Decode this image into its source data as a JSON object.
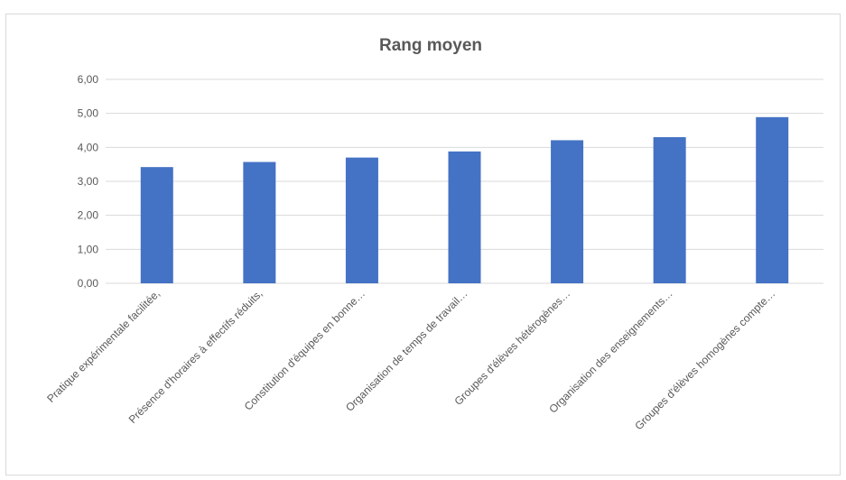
{
  "chart_data": {
    "type": "bar",
    "title": "Rang moyen",
    "categories": [
      "Pratique expérimentale facilitée,",
      "Présence d'horaires à effectifs réduits,",
      "Constitution d'équipes en bonne…",
      "Organisation de temps de travail…",
      "Groupes d'élèves hétérogènes…",
      "Organisation des enseignements…",
      "Groupes d'élèves homogènes compte…"
    ],
    "values": [
      3.42,
      3.57,
      3.7,
      3.88,
      4.21,
      4.3,
      4.89
    ],
    "ylim": [
      0,
      6
    ],
    "yticks": [
      "0,00",
      "1,00",
      "2,00",
      "3,00",
      "4,00",
      "5,00",
      "6,00"
    ],
    "grid": true,
    "bar_color": "#4472C4",
    "grid_color": "#d9d9d9"
  }
}
